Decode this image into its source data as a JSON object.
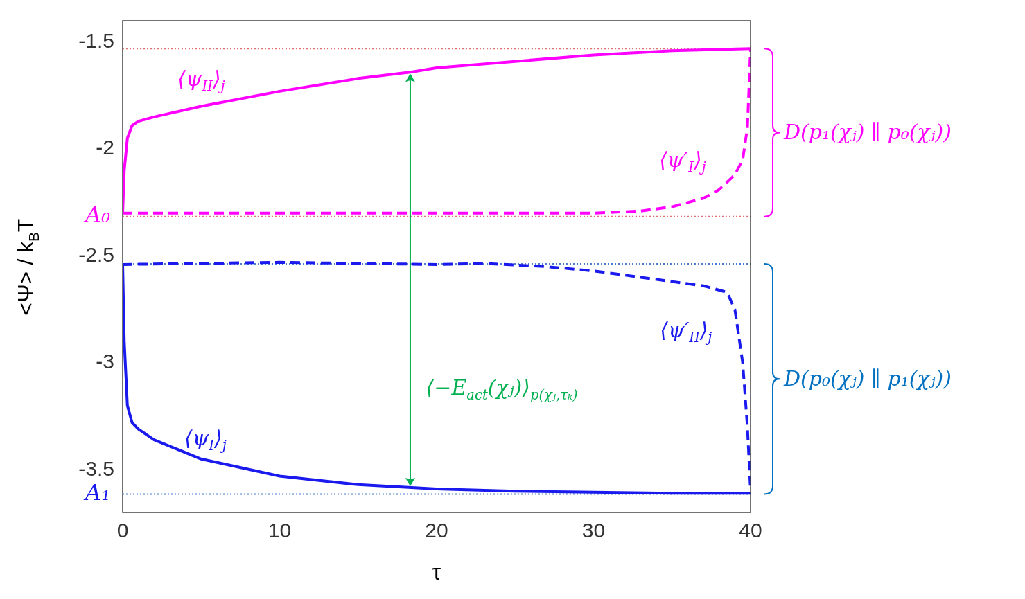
{
  "chart_data": {
    "type": "line",
    "xlabel": "τ",
    "ylabel": "<Ψ> / k$_{B}$T",
    "xlim": [
      0,
      40
    ],
    "ylim": [
      -3.7,
      -1.4
    ],
    "xticks": [
      0,
      10,
      20,
      30,
      40
    ],
    "yticks": [
      -1.5,
      -2,
      -2.5,
      -3,
      -3.5
    ],
    "grid": false,
    "legend": false,
    "marker": "none",
    "series": [
      {
        "color": "#ff00ff",
        "line_style": "solid",
        "x": [
          0,
          0.1,
          0.3,
          0.6,
          1,
          2,
          5,
          10,
          15,
          18.4,
          20,
          25,
          30,
          35,
          40
        ],
        "values": [
          -2.3,
          -2.1,
          -1.95,
          -1.89,
          -1.87,
          -1.85,
          -1.8,
          -1.73,
          -1.67,
          -1.64,
          -1.62,
          -1.59,
          -1.56,
          -1.54,
          -1.53
        ]
      },
      {
        "color": "#ff00ff",
        "line_style": "dashed",
        "x": [
          0,
          25,
          30,
          33,
          35,
          37,
          38,
          39,
          39.5,
          39.8,
          40
        ],
        "values": [
          -2.3,
          -2.3,
          -2.3,
          -2.29,
          -2.27,
          -2.23,
          -2.19,
          -2.12,
          -2.05,
          -1.9,
          -1.53
        ]
      },
      {
        "color": "#1a1aee",
        "line_style": "dashed",
        "x": [
          0,
          5,
          10,
          15,
          20,
          23,
          27,
          30,
          33,
          35,
          37,
          38.5,
          39,
          39.5,
          39.8,
          40
        ],
        "values": [
          -2.54,
          -2.535,
          -2.53,
          -2.535,
          -2.54,
          -2.535,
          -2.55,
          -2.57,
          -2.6,
          -2.62,
          -2.64,
          -2.67,
          -2.75,
          -3.0,
          -3.3,
          -3.6
        ]
      },
      {
        "color": "#1a1aee",
        "line_style": "solid",
        "x": [
          0,
          0.1,
          0.3,
          0.6,
          1,
          2,
          5,
          10,
          15,
          20,
          25,
          30,
          35,
          40
        ],
        "values": [
          -2.54,
          -2.9,
          -3.2,
          -3.28,
          -3.31,
          -3.36,
          -3.45,
          -3.53,
          -3.57,
          -3.59,
          -3.6,
          -3.605,
          -3.61,
          -3.61
        ]
      }
    ],
    "ref_lines": [
      {
        "axis": "y",
        "value": -1.53,
        "color": "#e07070",
        "line_style": "dotted"
      },
      {
        "axis": "y",
        "value": -2.316,
        "label": "A₀",
        "color": "#e07070",
        "line_style": "dotted"
      },
      {
        "axis": "y",
        "value": -2.537,
        "color": "#4a7fd0",
        "line_style": "dotted"
      },
      {
        "axis": "y",
        "value": -3.614,
        "label": "A₁",
        "color": "#4a7fd0",
        "line_style": "dotted"
      }
    ],
    "annotations": [
      "⟨ψ$_{II}$⟩$_{j}$",
      "⟨ψ′$_{I}$⟩$_{j}$",
      "⟨ψ′$_{II}$⟩$_{j}$",
      "⟨ψ$_{I}$⟩$_{j}$",
      "⟨−E$_{act}$(χⱼ)⟩$_{p(χⱼ,τₖ)}$",
      "D(p₁(χⱼ) ∥ p₀(χⱼ))",
      "D(p₀(χⱼ) ∥ p₁(χⱼ))"
    ]
  }
}
